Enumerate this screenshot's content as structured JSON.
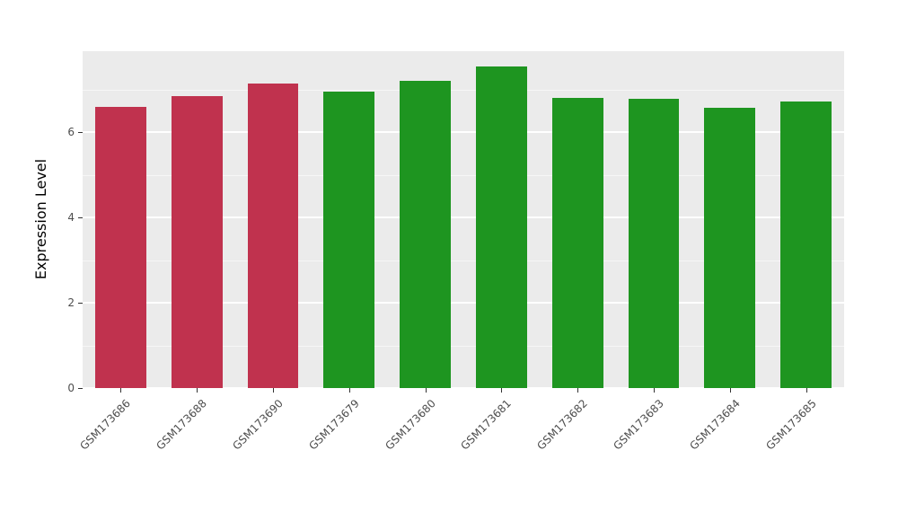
{
  "chart": {
    "y_axis_title": "Expression Level"
  },
  "chart_data": {
    "type": "bar",
    "title": "",
    "xlabel": "",
    "ylabel": "Expression Level",
    "categories": [
      "GSM173686",
      "GSM173688",
      "GSM173690",
      "GSM173679",
      "GSM173680",
      "GSM173681",
      "GSM173682",
      "GSM173683",
      "GSM173684",
      "GSM173685"
    ],
    "values": [
      6.6,
      6.85,
      7.15,
      6.95,
      7.2,
      7.55,
      6.8,
      6.78,
      6.58,
      6.72
    ],
    "colors": [
      "#c0324e",
      "#c0324e",
      "#c0324e",
      "#1e9520",
      "#1e9520",
      "#1e9520",
      "#1e9520",
      "#1e9520",
      "#1e9520",
      "#1e9520"
    ],
    "group_colors": {
      "red_group": "#c0324e",
      "green_group": "#1e9520"
    },
    "ylim": [
      0,
      7.9
    ],
    "yticks": [
      0,
      2,
      4,
      6
    ],
    "yticks_minor": [
      1,
      3,
      5,
      7
    ],
    "grid": true,
    "legend": false,
    "panel_background": "#ebebeb",
    "bar_width_fraction": 0.67
  },
  "layout_note": ""
}
